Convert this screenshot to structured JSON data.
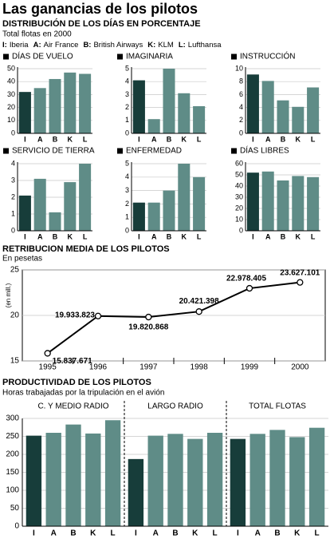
{
  "header": {
    "title": "Las ganancias de los pilotos"
  },
  "sections": [
    {
      "title": "DISTRIBUCIÓN DE LOS DÍAS EN PORCENTAJE",
      "subtitle": "Total flotas en 2000",
      "legend": [
        {
          "key": "I:",
          "name": "Iberia"
        },
        {
          "key": "A:",
          "name": "Air France"
        },
        {
          "key": "B:",
          "name": "British Airways"
        },
        {
          "key": "K:",
          "name": "KLM"
        },
        {
          "key": "L:",
          "name": "Lufthansa"
        }
      ]
    },
    {
      "title": "RETRIBUCION MEDIA DE LOS PILOTOS",
      "subtitle": "En pesetas"
    },
    {
      "title": "PRODUCTIVIDAD DE LOS PILOTOS",
      "subtitle": "Horas trabajadas por la tripulación en el avión"
    }
  ],
  "chart_data": [
    {
      "type": "bar",
      "title": "DÍAS DE VUELO",
      "categories": [
        "I",
        "A",
        "B",
        "K",
        "L"
      ],
      "values": [
        32,
        35,
        42,
        47,
        46
      ],
      "colors": [
        "#173d3a",
        "#5f8c87",
        "#5f8c87",
        "#5f8c87",
        "#5f8c87"
      ],
      "ylim": [
        0,
        50
      ],
      "yticks": [
        0,
        10,
        20,
        30,
        40,
        50
      ],
      "grid": true
    },
    {
      "type": "bar",
      "title": "IMAGINARIA",
      "categories": [
        "I",
        "A",
        "B",
        "K",
        "L"
      ],
      "values": [
        4.1,
        1.1,
        5,
        3.1,
        2.1
      ],
      "colors": [
        "#173d3a",
        "#5f8c87",
        "#5f8c87",
        "#5f8c87",
        "#5f8c87"
      ],
      "ylim": [
        0,
        5
      ],
      "yticks": [
        0,
        1,
        2,
        3,
        4,
        5
      ],
      "grid": true
    },
    {
      "type": "bar",
      "title": "INSTRUCCIÓN",
      "categories": [
        "I",
        "A",
        "B",
        "K",
        "L"
      ],
      "values": [
        9.1,
        8.1,
        5.1,
        4.1,
        7.1
      ],
      "colors": [
        "#173d3a",
        "#5f8c87",
        "#5f8c87",
        "#5f8c87",
        "#5f8c87"
      ],
      "ylim": [
        0,
        10
      ],
      "yticks": [
        0,
        2,
        4,
        6,
        8,
        10
      ],
      "grid": true
    },
    {
      "type": "bar",
      "title": "SERVICIO DE TIERRA",
      "categories": [
        "I",
        "A",
        "B",
        "K",
        "L"
      ],
      "values": [
        2.1,
        3.1,
        1.1,
        2.9,
        4
      ],
      "colors": [
        "#173d3a",
        "#5f8c87",
        "#5f8c87",
        "#5f8c87",
        "#5f8c87"
      ],
      "ylim": [
        0,
        4
      ],
      "yticks": [
        0,
        1,
        2,
        3,
        4
      ],
      "grid": true
    },
    {
      "type": "bar",
      "title": "ENFERMEDAD",
      "categories": [
        "I",
        "A",
        "B",
        "K",
        "L"
      ],
      "values": [
        2.1,
        2.1,
        3,
        5,
        4
      ],
      "colors": [
        "#173d3a",
        "#5f8c87",
        "#5f8c87",
        "#5f8c87",
        "#5f8c87"
      ],
      "ylim": [
        0,
        5
      ],
      "yticks": [
        0,
        1,
        2,
        3,
        4,
        5
      ],
      "grid": true
    },
    {
      "type": "bar",
      "title": "DÍAS LIBRES",
      "categories": [
        "I",
        "A",
        "B",
        "K",
        "L"
      ],
      "values": [
        52,
        53,
        45,
        49,
        48
      ],
      "colors": [
        "#173d3a",
        "#5f8c87",
        "#5f8c87",
        "#5f8c87",
        "#5f8c87"
      ],
      "ylim": [
        0,
        60
      ],
      "yticks": [
        0,
        10,
        20,
        30,
        40,
        50,
        60
      ],
      "grid": true
    },
    {
      "type": "line",
      "ylabel": "(en mill.)",
      "categories": [
        "1995",
        "1996",
        "1997",
        "1998",
        "1999",
        "2000"
      ],
      "values": [
        15.837671,
        19.933823,
        19.820868,
        20.421398,
        22.978405,
        23.627101
      ],
      "value_labels": [
        "15.837.671",
        "19.933.823",
        "19.820.868",
        "20.421.398",
        "22.978.405",
        "23.627.101"
      ],
      "color": "#000000",
      "ylim": [
        15,
        25
      ],
      "yticks": [
        15,
        20,
        25
      ],
      "grid": true
    },
    {
      "type": "panel-bar",
      "categories": [
        "I",
        "A",
        "B",
        "K",
        "L"
      ],
      "ylim": [
        0,
        300
      ],
      "yticks": [
        0,
        50,
        100,
        150,
        200,
        250,
        300
      ],
      "grid": true,
      "panels": [
        {
          "title": "C. Y MEDIO RADIO",
          "values": [
            252,
            260,
            283,
            258,
            295
          ],
          "colors": [
            "#173d3a",
            "#5f8c87",
            "#5f8c87",
            "#5f8c87",
            "#5f8c87"
          ]
        },
        {
          "title": "LARGO RADIO",
          "values": [
            187,
            252,
            257,
            243,
            260
          ],
          "colors": [
            "#173d3a",
            "#5f8c87",
            "#5f8c87",
            "#5f8c87",
            "#5f8c87"
          ]
        },
        {
          "title": "TOTAL FLOTAS",
          "values": [
            243,
            257,
            268,
            248,
            274
          ],
          "colors": [
            "#173d3a",
            "#5f8c87",
            "#5f8c87",
            "#5f8c87",
            "#5f8c87"
          ]
        }
      ]
    }
  ]
}
